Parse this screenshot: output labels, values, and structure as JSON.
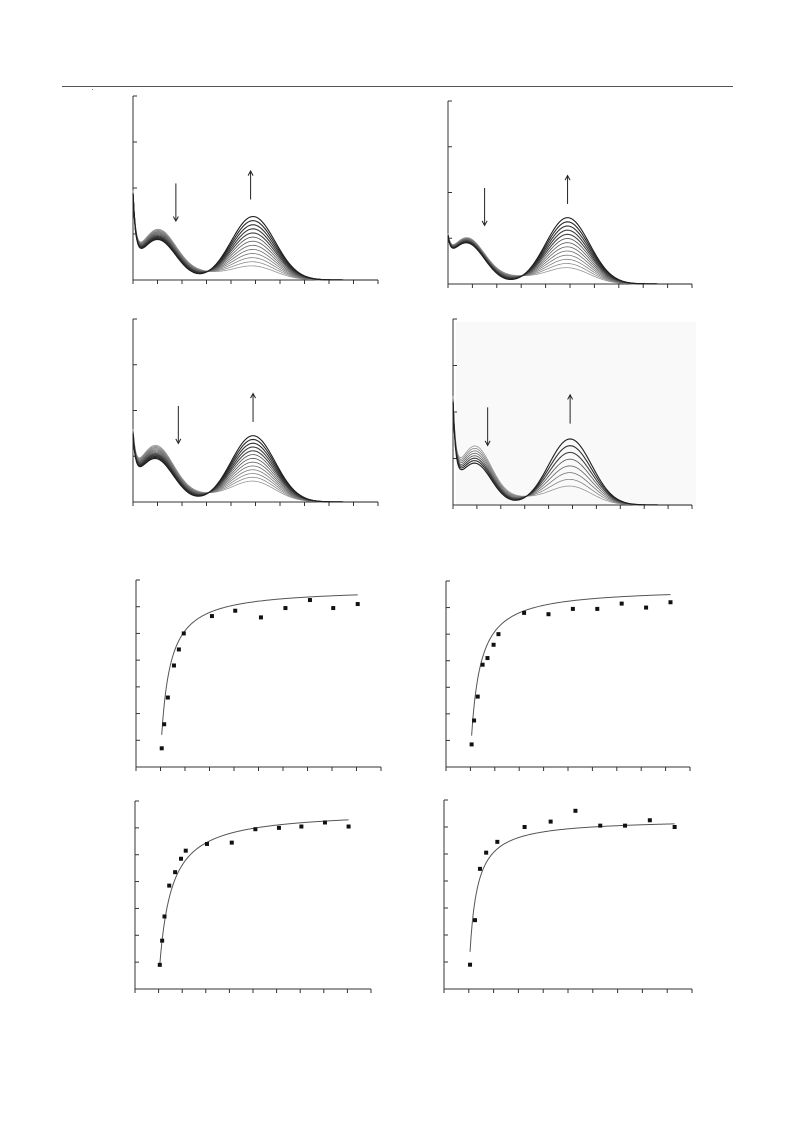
{
  "colors": {
    "axis": "#333333",
    "curve_dark": "#222222",
    "curve_light": "#9a9a9a",
    "marker": "#111111",
    "fit_line": "#555555"
  },
  "chart_data": [
    {
      "type": "line",
      "panel": "top-left",
      "x_range": [
        0,
        10
      ],
      "y_range": [
        0,
        4
      ],
      "x_ticks": 10,
      "y_ticks": 4,
      "grid": false,
      "series_count": 13,
      "band_1": {
        "center": 1.0,
        "width": 0.75,
        "amplitude_start": 1.08,
        "amplitude_end": 0.88
      },
      "band_2": {
        "center": 4.9,
        "width": 0.9,
        "amplitude_start": 0.3,
        "amplitude_end": 1.38
      },
      "uv_edge_amplitude": 1.5,
      "arrows": [
        {
          "x": 1.75,
          "direction": "down"
        },
        {
          "x": 4.8,
          "direction": "up"
        }
      ]
    },
    {
      "type": "line",
      "panel": "top-right",
      "x_range": [
        0,
        10
      ],
      "y_range": [
        0,
        4
      ],
      "x_ticks": 10,
      "y_ticks": 4,
      "grid": false,
      "series_count": 13,
      "band_1": {
        "center": 0.75,
        "width": 0.75,
        "amplitude_start": 1.0,
        "amplitude_end": 0.9
      },
      "band_2": {
        "center": 4.9,
        "width": 0.9,
        "amplitude_start": 0.35,
        "amplitude_end": 1.45
      },
      "uv_edge_amplitude": 0.5,
      "arrows": [
        {
          "x": 1.5,
          "direction": "down"
        },
        {
          "x": 4.9,
          "direction": "up"
        }
      ]
    },
    {
      "type": "line",
      "panel": "middle-left",
      "x_range": [
        0,
        10
      ],
      "y_range": [
        0,
        4
      ],
      "x_ticks": 10,
      "y_ticks": 4,
      "grid": false,
      "series_count": 13,
      "band_1": {
        "center": 0.9,
        "width": 0.75,
        "amplitude_start": 1.22,
        "amplitude_end": 0.95
      },
      "band_2": {
        "center": 4.9,
        "width": 0.9,
        "amplitude_start": 0.45,
        "amplitude_end": 1.45
      },
      "uv_edge_amplitude": 1.0,
      "arrows": [
        {
          "x": 1.85,
          "direction": "down"
        },
        {
          "x": 4.9,
          "direction": "up"
        }
      ]
    },
    {
      "type": "line",
      "panel": "middle-right",
      "x_range": [
        0,
        10
      ],
      "y_range": [
        0,
        4
      ],
      "x_ticks": 10,
      "y_ticks": 4,
      "grid": false,
      "series_count": 8,
      "band_1": {
        "center": 0.9,
        "width": 0.7,
        "amplitude_start": 1.25,
        "amplitude_end": 0.9
      },
      "band_2": {
        "center": 4.9,
        "width": 0.9,
        "amplitude_start": 0.4,
        "amplitude_end": 1.42
      },
      "uv_edge_amplitude": 1.8,
      "arrows": [
        {
          "x": 1.45,
          "direction": "down"
        },
        {
          "x": 4.9,
          "direction": "up"
        }
      ]
    },
    {
      "type": "scatter",
      "panel": "bottom-top-left",
      "x_range": [
        0,
        10
      ],
      "y_range": [
        0,
        7
      ],
      "x_ticks": 10,
      "y_ticks": 7,
      "grid": false,
      "fit": {
        "model": "hyperbolic",
        "ymax": 6.7,
        "k": 0.32,
        "x0": 1.0
      },
      "points": [
        {
          "x": 1.05,
          "y": 0.7
        },
        {
          "x": 1.15,
          "y": 1.6
        },
        {
          "x": 1.3,
          "y": 2.6
        },
        {
          "x": 1.55,
          "y": 3.8
        },
        {
          "x": 1.75,
          "y": 4.4
        },
        {
          "x": 1.95,
          "y": 5.0
        },
        {
          "x": 3.1,
          "y": 5.65
        },
        {
          "x": 4.05,
          "y": 5.85
        },
        {
          "x": 5.1,
          "y": 5.6
        },
        {
          "x": 6.1,
          "y": 5.95
        },
        {
          "x": 7.1,
          "y": 6.25
        },
        {
          "x": 8.05,
          "y": 5.95
        },
        {
          "x": 9.05,
          "y": 6.1
        }
      ]
    },
    {
      "type": "scatter",
      "panel": "bottom-top-right",
      "x_range": [
        0,
        10
      ],
      "y_range": [
        0,
        7
      ],
      "x_ticks": 10,
      "y_ticks": 7,
      "grid": false,
      "fit": {
        "model": "hyperbolic",
        "ymax": 6.75,
        "k": 0.33,
        "x0": 1.0
      },
      "points": [
        {
          "x": 1.05,
          "y": 0.85
        },
        {
          "x": 1.15,
          "y": 1.75
        },
        {
          "x": 1.3,
          "y": 2.65
        },
        {
          "x": 1.5,
          "y": 3.85
        },
        {
          "x": 1.7,
          "y": 4.1
        },
        {
          "x": 1.95,
          "y": 4.6
        },
        {
          "x": 2.15,
          "y": 5.0
        },
        {
          "x": 3.2,
          "y": 5.8
        },
        {
          "x": 4.2,
          "y": 5.75
        },
        {
          "x": 5.2,
          "y": 5.95
        },
        {
          "x": 6.2,
          "y": 5.95
        },
        {
          "x": 7.2,
          "y": 6.15
        },
        {
          "x": 8.2,
          "y": 6.0
        },
        {
          "x": 9.2,
          "y": 6.2
        }
      ]
    },
    {
      "type": "scatter",
      "panel": "bottom-lower-left",
      "x_range": [
        0,
        10
      ],
      "y_range": [
        0,
        7
      ],
      "x_ticks": 10,
      "y_ticks": 7,
      "grid": false,
      "fit": {
        "model": "hyperbolic",
        "ymax": 6.65,
        "k": 0.45,
        "x0": 1.0
      },
      "points": [
        {
          "x": 1.05,
          "y": 0.9
        },
        {
          "x": 1.15,
          "y": 1.8
        },
        {
          "x": 1.25,
          "y": 2.7
        },
        {
          "x": 1.45,
          "y": 3.85
        },
        {
          "x": 1.7,
          "y": 4.35
        },
        {
          "x": 1.95,
          "y": 4.85
        },
        {
          "x": 2.15,
          "y": 5.15
        },
        {
          "x": 3.05,
          "y": 5.4
        },
        {
          "x": 4.1,
          "y": 5.45
        },
        {
          "x": 5.1,
          "y": 5.95
        },
        {
          "x": 6.1,
          "y": 6.0
        },
        {
          "x": 7.05,
          "y": 6.05
        },
        {
          "x": 8.05,
          "y": 6.2
        },
        {
          "x": 9.05,
          "y": 6.05
        }
      ]
    },
    {
      "type": "scatter",
      "panel": "bottom-lower-right",
      "x_range": [
        0,
        10
      ],
      "y_range": [
        0,
        7
      ],
      "x_ticks": 10,
      "y_ticks": 7,
      "grid": false,
      "fit": {
        "model": "hyperbolic",
        "ymax": 6.3,
        "k": 0.25,
        "x0": 1.0
      },
      "points": [
        {
          "x": 1.05,
          "y": 0.9
        },
        {
          "x": 1.25,
          "y": 2.55
        },
        {
          "x": 1.45,
          "y": 4.45
        },
        {
          "x": 1.7,
          "y": 5.05
        },
        {
          "x": 2.15,
          "y": 5.45
        },
        {
          "x": 3.25,
          "y": 6.0
        },
        {
          "x": 4.3,
          "y": 6.2
        },
        {
          "x": 5.3,
          "y": 6.6
        },
        {
          "x": 6.3,
          "y": 6.05
        },
        {
          "x": 7.3,
          "y": 6.05
        },
        {
          "x": 8.3,
          "y": 6.25
        },
        {
          "x": 9.3,
          "y": 6.0
        }
      ]
    }
  ]
}
